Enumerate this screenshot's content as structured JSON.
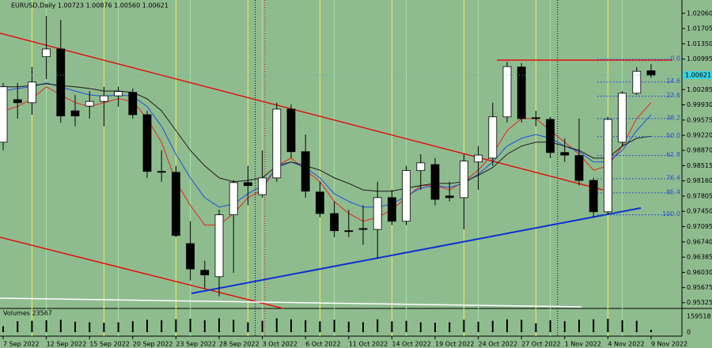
{
  "chart_data": {
    "type": "candlestick",
    "title": "EURUSD,Daily 1.00723 1.00876 1.00560 1.00621",
    "x": [
      "7 Sep 2022",
      null,
      null,
      "12 Sep 2022",
      null,
      null,
      "15 Sep 2022",
      null,
      null,
      "20 Sep 2022",
      null,
      null,
      "23 Sep 2022",
      null,
      null,
      "28 Sep 2022",
      null,
      null,
      "3 Oct 2022",
      null,
      null,
      "6 Oct 2022",
      null,
      null,
      "11 Oct 2022",
      null,
      null,
      "14 Oct 2022",
      null,
      null,
      "19 Oct 2022",
      null,
      null,
      "24 Oct 2022",
      null,
      null,
      "27 Oct 2022",
      null,
      null,
      "1 Nov 2022",
      null,
      null,
      "4 Nov 2022",
      null,
      null,
      "9 Nov 2022"
    ],
    "open": [
      0.9906,
      1.0005,
      0.9998,
      1.0105,
      1.0123,
      0.9979,
      0.999,
      1.0001,
      1.0014,
      1.0022,
      0.997,
      0.9838,
      0.9836,
      0.967,
      0.9608,
      0.9593,
      0.9737,
      0.9812,
      0.9784,
      0.9823,
      0.9983,
      0.9884,
      0.979,
      0.974,
      0.97,
      0.9705,
      0.9703,
      0.9777,
      0.9722,
      0.984,
      0.9854,
      0.9781,
      0.9777,
      0.986,
      0.9869,
      0.9965,
      1.0081,
      0.9963,
      0.9959,
      0.9882,
      0.9875,
      0.9817,
      0.9744,
      0.9906,
      1.002,
      1.00723
    ],
    "high": [
      1.0044,
      1.0044,
      1.0081,
      1.02,
      1.0191,
      1.0016,
      1.0025,
      1.0035,
      1.0035,
      1.0031,
      0.9979,
      0.9887,
      0.9851,
      0.9722,
      0.963,
      0.9749,
      0.9818,
      0.9851,
      0.9887,
      0.9998,
      0.9994,
      0.9924,
      0.9814,
      0.9768,
      0.9749,
      0.9759,
      0.9814,
      0.9795,
      0.9851,
      0.9878,
      0.9869,
      0.9814,
      0.9878,
      0.9897,
      0.9998,
      1.0093,
      1.009,
      0.9979,
      0.9965,
      0.9915,
      0.9961,
      0.9823,
      0.9965,
      1.0025,
      1.0081,
      1.00876
    ],
    "low": [
      0.9887,
      0.9961,
      0.997,
      1.0053,
      0.9952,
      0.9943,
      0.9961,
      0.9943,
      0.9989,
      0.9961,
      0.9823,
      0.9814,
      0.9685,
      0.9584,
      0.9565,
      0.9547,
      0.9602,
      0.9759,
      0.9777,
      0.9814,
      0.9869,
      0.9777,
      0.9731,
      0.9685,
      0.9685,
      0.9667,
      0.9635,
      0.9713,
      0.9713,
      0.9795,
      0.9759,
      0.9768,
      0.9703,
      0.9795,
      0.9851,
      0.9952,
      0.9952,
      0.9943,
      0.9869,
      0.986,
      0.9805,
      0.9731,
      0.9737,
      0.9897,
      1.0016,
      1.0056
    ],
    "close": [
      1.0035,
      0.9998,
      1.0046,
      1.0123,
      0.9967,
      0.9967,
      1.0001,
      1.0014,
      1.0024,
      0.997,
      0.9838,
      0.9836,
      0.9689,
      0.9611,
      0.9597,
      0.9737,
      0.9812,
      0.9805,
      0.9823,
      0.9983,
      0.9884,
      0.9792,
      0.974,
      0.97,
      0.9698,
      0.9703,
      0.9777,
      0.9722,
      0.984,
      0.9858,
      0.9773,
      0.9777,
      0.9862,
      0.9876,
      0.9965,
      1.0082,
      0.9961,
      0.9961,
      0.9882,
      0.9876,
      0.9817,
      0.9744,
      0.9959,
      1.002,
      1.0071,
      1.00621
    ],
    "last_price": {
      "value": 1.00621,
      "label": "1.00621"
    },
    "series": [
      {
        "color": "#e8231f",
        "values": [
          0.9979,
          0.9989,
          1.0007,
          1.0035,
          1.0016,
          0.9998,
          0.9989,
          0.9998,
          1.0007,
          1.0001,
          0.9961,
          0.9906,
          0.9814,
          0.9759,
          0.9713,
          0.9713,
          0.974,
          0.9777,
          0.9795,
          0.9851,
          0.9869,
          0.9841,
          0.9814,
          0.9768,
          0.974,
          0.9722,
          0.9731,
          0.9749,
          0.9777,
          0.9805,
          0.9805,
          0.9795,
          0.9814,
          0.9841,
          0.9878,
          0.9933,
          0.9961,
          0.9961,
          0.9933,
          0.9906,
          0.9878,
          0.9841,
          0.9851,
          0.9897,
          0.9961,
          0.9998
        ]
      },
      {
        "color": "#1f4fe0",
        "values": [
          1.0025,
          1.0031,
          1.0035,
          1.0044,
          1.0035,
          1.0025,
          1.0016,
          1.0013,
          1.0016,
          1.0013,
          0.9989,
          0.9943,
          0.9878,
          0.9823,
          0.9777,
          0.9755,
          0.9762,
          0.9786,
          0.9805,
          0.9847,
          0.986,
          0.9847,
          0.9823,
          0.9786,
          0.9768,
          0.9755,
          0.9755,
          0.9762,
          0.9781,
          0.9799,
          0.9805,
          0.9801,
          0.981,
          0.9832,
          0.986,
          0.9897,
          0.9915,
          0.9924,
          0.9915,
          0.9897,
          0.9884,
          0.986,
          0.986,
          0.9887,
          0.9933,
          0.997
        ]
      },
      {
        "color": "#1a1a1a",
        "values": [
          1.0035,
          1.0035,
          1.0038,
          1.0042,
          1.0038,
          1.0035,
          1.0031,
          1.0025,
          1.0025,
          1.0022,
          1.0007,
          0.9979,
          0.9933,
          0.9887,
          0.9851,
          0.9823,
          0.9814,
          0.9817,
          0.9823,
          0.9851,
          0.986,
          0.9851,
          0.9841,
          0.9823,
          0.981,
          0.9795,
          0.9792,
          0.9792,
          0.9799,
          0.9805,
          0.981,
          0.981,
          0.9814,
          0.9829,
          0.9847,
          0.9878,
          0.9897,
          0.9906,
          0.9906,
          0.9897,
          0.9887,
          0.9869,
          0.9869,
          0.9897,
          0.9915,
          0.992
        ]
      }
    ],
    "ylim": [
      0.9519,
      1.0237
    ],
    "yticks": [
      {
        "value": 1.0206,
        "label": "1.02060"
      },
      1.01705,
      {
        "value": 1.0135,
        "label": "1.01350"
      },
      1.00995,
      1.00285,
      {
        "value": 0.9993,
        "label": "0.99930"
      },
      0.99575,
      {
        "value": 0.9922,
        "label": "0.99220"
      },
      {
        "value": 0.9887,
        "label": "0.98870"
      },
      0.98515,
      {
        "value": 0.9816,
        "label": "0.98160"
      },
      0.97805,
      {
        "value": 0.9745,
        "label": "0.97450"
      },
      0.97095,
      {
        "value": 0.9674,
        "label": "0.96740"
      },
      0.96385,
      {
        "value": 0.9603,
        "label": "0.96030"
      },
      0.95675,
      0.95325
    ],
    "fibonacci": {
      "color": "#2a4fd8",
      "levels": [
        {
          "label": "0.0",
          "price": 1.0099
        },
        {
          "label": "14.6",
          "price": 1.0046
        },
        {
          "label": "23.6",
          "price": 1.0013
        },
        {
          "label": "38.2",
          "price": 0.9961
        },
        {
          "label": "50.0",
          "price": 0.9919
        },
        {
          "label": "61.8",
          "price": 0.9875
        },
        {
          "label": "76.4",
          "price": 0.9821
        },
        {
          "label": "85.4",
          "price": 0.9788
        },
        {
          "label": "100.0",
          "price": 0.9737
        }
      ]
    },
    "volume": {
      "label": "Volumes 23567",
      "vlim": [
        0,
        159518
      ],
      "vticks": [
        159518,
        0
      ],
      "values": [
        60000,
        110000,
        115000,
        120000,
        125000,
        105000,
        100000,
        95000,
        100000,
        110000,
        125000,
        120000,
        130000,
        135000,
        120000,
        140000,
        125000,
        100000,
        115000,
        140000,
        130000,
        120000,
        110000,
        125000,
        105000,
        100000,
        130000,
        110000,
        115000,
        100000,
        95000,
        100000,
        125000,
        105000,
        115000,
        130000,
        125000,
        90000,
        120000,
        110000,
        125000,
        130000,
        135000,
        120000,
        115000,
        23567
      ]
    }
  }
}
